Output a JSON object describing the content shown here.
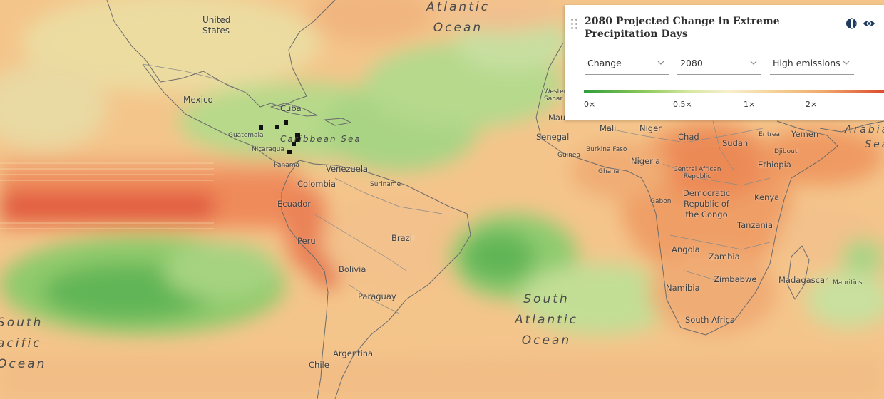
{
  "panel": {
    "title": "2080 Projected Change in Extreme Precipitation Days",
    "controls": {
      "metric": "Change",
      "year": "2080",
      "scenario": "High emissions"
    },
    "icons": [
      "drag-handle-icon",
      "compare-icon",
      "visibility-eye-icon"
    ],
    "legend": {
      "labels": [
        "0×",
        "0.5×",
        "1×",
        "2×"
      ],
      "colors": [
        "#2f9e3a",
        "#8cc85a",
        "#f7efcf",
        "#f0a86a",
        "#dc4b2f"
      ]
    }
  },
  "map": {
    "oceans": {
      "north_atlantic": [
        "Atlantic",
        "Ocean"
      ],
      "south_atlantic": [
        "South",
        "Atlantic",
        "Ocean"
      ],
      "south_pacific": [
        "South",
        "acific",
        "Ocean"
      ],
      "arabian_sea": [
        "Arabia",
        "Sea"
      ],
      "caribbean": "Caribbean Sea"
    },
    "places": {
      "united_states": "United States",
      "mexico": "Mexico",
      "cuba": "Cuba",
      "guatemala": "Guatemala",
      "nicaragua": "Nicaragua",
      "panama": "Panama",
      "venezuela": "Venezuela",
      "colombia": "Colombia",
      "suriname": "Suriname",
      "ecuador": "Ecuador",
      "peru": "Peru",
      "brazil": "Brazil",
      "bolivia": "Bolivia",
      "paraguay": "Paraguay",
      "argentina": "Argentina",
      "chile": "Chile",
      "western_sahara": "Wester Sahar",
      "mauritania": "Mau",
      "senegal": "Senegal",
      "guinea": "Guinea",
      "mali": "Mali",
      "niger": "Niger",
      "chad": "Chad",
      "sudan": "Sudan",
      "eritrea": "Eritrea",
      "yemen": "Yemen",
      "djibouti": "Djibouti",
      "burkina_faso": "Burkina Faso",
      "nigeria": "Nigeria",
      "ghana": "Ghana",
      "ethiopia": "Ethiopia",
      "car": "Central African Republic",
      "drc": "Democratic Republic of the Congo",
      "gabon": "Gabon",
      "kenya": "Kenya",
      "tanzania": "Tanzania",
      "angola": "Angola",
      "zambia": "Zambia",
      "zimbabwe": "Zimbabwe",
      "namibia": "Namibia",
      "madagascar": "Madagascar",
      "mauritius": "Mauritius",
      "south_africa": "South Africa"
    }
  }
}
